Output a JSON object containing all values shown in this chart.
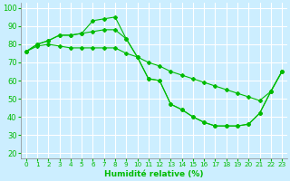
{
  "xlabel": "Humidité relative (%)",
  "background_color": "#cceeff",
  "grid_color": "#ffffff",
  "line_color": "#00bb00",
  "x_ticks": [
    0,
    1,
    2,
    3,
    4,
    5,
    6,
    7,
    8,
    9,
    10,
    11,
    12,
    13,
    14,
    15,
    16,
    17,
    18,
    19,
    20,
    21,
    22,
    23
  ],
  "y_ticks": [
    20,
    30,
    40,
    50,
    60,
    70,
    80,
    90,
    100
  ],
  "xlim": [
    -0.5,
    23.5
  ],
  "ylim": [
    17,
    103
  ],
  "series": [
    [
      76,
      80,
      82,
      85,
      85,
      86,
      93,
      94,
      95,
      83,
      73,
      61,
      60,
      47,
      44,
      40,
      37,
      35,
      35,
      35,
      36,
      42,
      54,
      65
    ],
    [
      76,
      80,
      82,
      85,
      85,
      86,
      87,
      88,
      88,
      83,
      73,
      61,
      60,
      47,
      44,
      40,
      37,
      35,
      35,
      35,
      36,
      42,
      54,
      65
    ],
    [
      76,
      79,
      80,
      79,
      78,
      78,
      78,
      78,
      78,
      75,
      73,
      70,
      68,
      65,
      63,
      61,
      59,
      57,
      55,
      53,
      51,
      49,
      54,
      65
    ]
  ],
  "xlabel_fontsize": 6.5,
  "ytick_fontsize": 6.0,
  "xtick_fontsize": 5.2
}
